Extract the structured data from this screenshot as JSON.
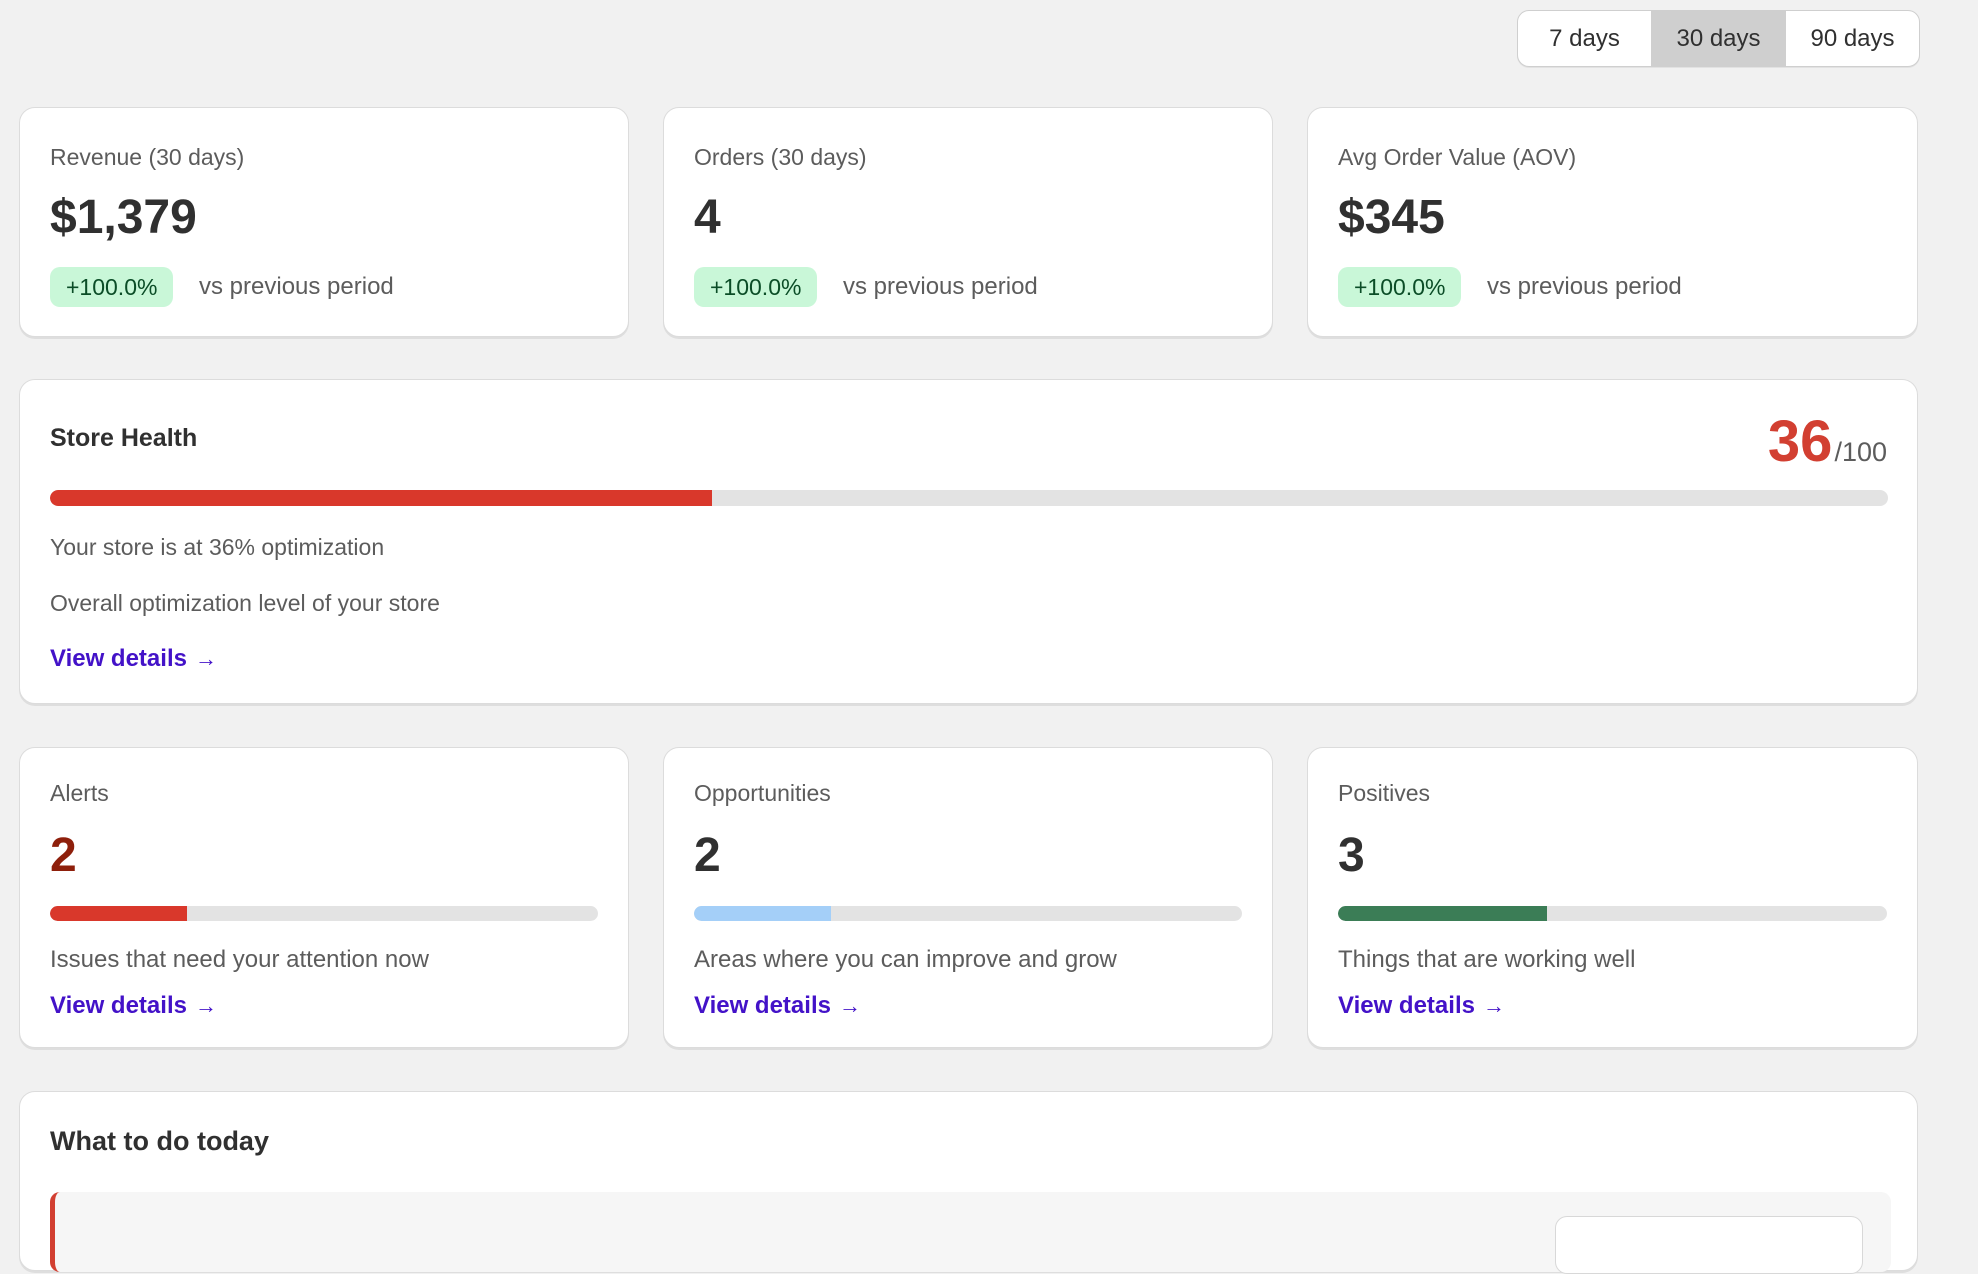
{
  "period": {
    "options": [
      "7 days",
      "30 days",
      "90 days"
    ],
    "selected": "30 days"
  },
  "metrics": [
    {
      "label": "Revenue (30 days)",
      "value": "$1,379",
      "change": "+100.0%",
      "comparison": "vs previous period"
    },
    {
      "label": "Orders (30 days)",
      "value": "4",
      "change": "+100.0%",
      "comparison": "vs previous period"
    },
    {
      "label": "Avg Order Value (AOV)",
      "value": "$345",
      "change": "+100.0%",
      "comparison": "vs previous period"
    }
  ],
  "health": {
    "title": "Store Health",
    "score": "36",
    "max": "/100",
    "progress": 0.36,
    "status": "Your store is at 36% optimization",
    "description": "Overall optimization level of your store",
    "link": "View details"
  },
  "insights": [
    {
      "label": "Alerts",
      "value": "2",
      "level": 0.25,
      "color": "#d9382b",
      "value_color": "#8e1f0b",
      "description": "Issues that need your attention now",
      "link": "View details"
    },
    {
      "label": "Opportunities",
      "value": "2",
      "level": 0.25,
      "color": "#a4cff8",
      "value_color": "#303030",
      "description": "Areas where you can improve and grow",
      "link": "View details"
    },
    {
      "label": "Positives",
      "value": "3",
      "level": 0.38,
      "color": "#3b7d56",
      "value_color": "#303030",
      "description": "Things that are working well",
      "link": "View details"
    }
  ],
  "todo": {
    "title": "What to do today"
  },
  "colors": {
    "accent_link": "#4312c8",
    "danger": "#d23f31",
    "badge_bg": "#c9f7d8"
  }
}
